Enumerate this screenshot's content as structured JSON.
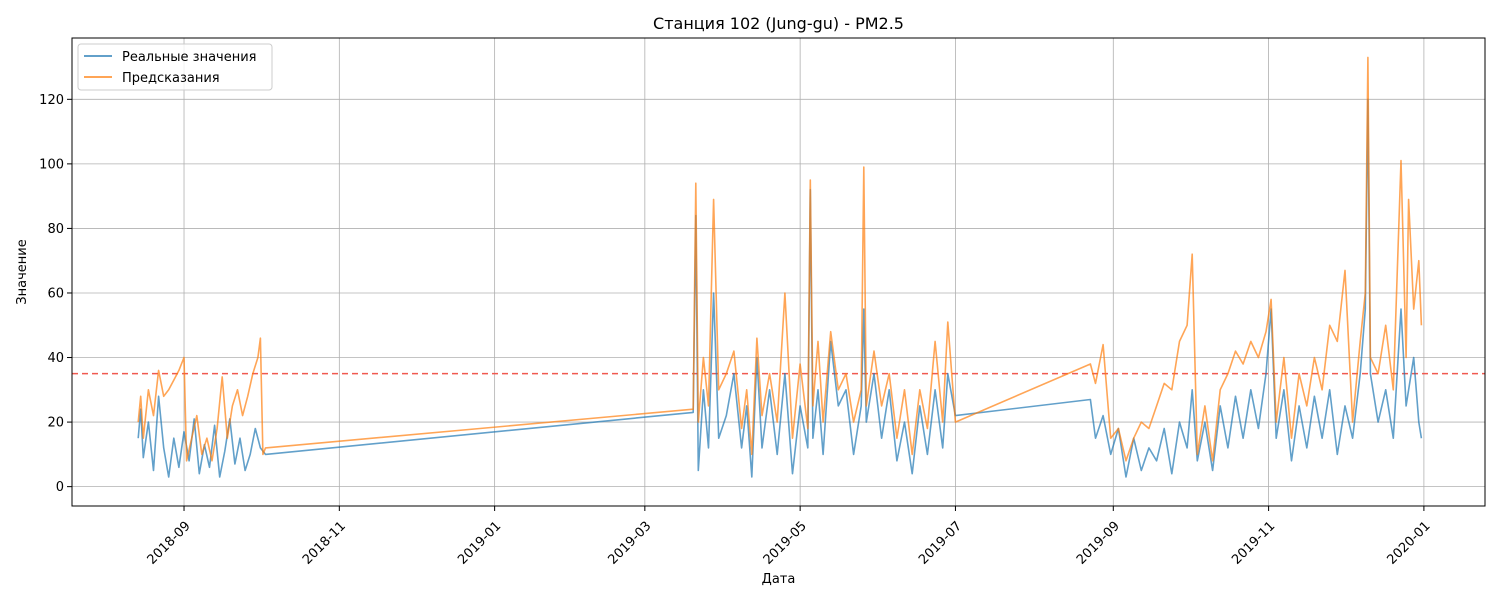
{
  "chart_data": {
    "type": "line",
    "title": "Станция 102 (Jung-gu) - PM2.5",
    "xlabel": "Дата",
    "ylabel": "Значение",
    "x_range": [
      "2018-07-19",
      "2020-01-25"
    ],
    "ylim": [
      -6,
      139
    ],
    "x_ticks": [
      "2018-09",
      "2018-11",
      "2019-01",
      "2019-03",
      "2019-05",
      "2019-07",
      "2019-09",
      "2019-11",
      "2020-01"
    ],
    "y_ticks": [
      0,
      20,
      40,
      60,
      80,
      100,
      120
    ],
    "grid": true,
    "legend_position": "top-left",
    "threshold": {
      "value": 35,
      "color": "#f05a50",
      "style": "dashed"
    },
    "series": [
      {
        "name": "Реальные значения",
        "color": "#1f77b4",
        "points": [
          [
            "2018-08-14",
            15
          ],
          [
            "2018-08-15",
            24
          ],
          [
            "2018-08-16",
            9
          ],
          [
            "2018-08-18",
            20
          ],
          [
            "2018-08-20",
            5
          ],
          [
            "2018-08-22",
            28
          ],
          [
            "2018-08-24",
            12
          ],
          [
            "2018-08-26",
            3
          ],
          [
            "2018-08-28",
            15
          ],
          [
            "2018-08-30",
            6
          ],
          [
            "2018-09-01",
            17
          ],
          [
            "2018-09-03",
            8
          ],
          [
            "2018-09-05",
            21
          ],
          [
            "2018-09-07",
            4
          ],
          [
            "2018-09-09",
            13
          ],
          [
            "2018-09-11",
            6
          ],
          [
            "2018-09-13",
            19
          ],
          [
            "2018-09-15",
            3
          ],
          [
            "2018-09-17",
            11
          ],
          [
            "2018-09-19",
            21
          ],
          [
            "2018-09-21",
            7
          ],
          [
            "2018-09-23",
            15
          ],
          [
            "2018-09-25",
            5
          ],
          [
            "2018-09-27",
            10
          ],
          [
            "2018-09-29",
            18
          ],
          [
            "2018-10-01",
            12
          ],
          [
            "2018-10-03",
            10
          ],
          [
            "2019-03-20",
            23
          ],
          [
            "2019-03-21",
            84
          ],
          [
            "2019-03-22",
            5
          ],
          [
            "2019-03-24",
            30
          ],
          [
            "2019-03-26",
            12
          ],
          [
            "2019-03-28",
            60
          ],
          [
            "2019-03-30",
            15
          ],
          [
            "2019-04-02",
            22
          ],
          [
            "2019-04-05",
            35
          ],
          [
            "2019-04-08",
            12
          ],
          [
            "2019-04-10",
            25
          ],
          [
            "2019-04-12",
            3
          ],
          [
            "2019-04-14",
            40
          ],
          [
            "2019-04-16",
            12
          ],
          [
            "2019-04-19",
            30
          ],
          [
            "2019-04-22",
            10
          ],
          [
            "2019-04-25",
            35
          ],
          [
            "2019-04-28",
            4
          ],
          [
            "2019-05-01",
            25
          ],
          [
            "2019-05-04",
            12
          ],
          [
            "2019-05-05",
            92
          ],
          [
            "2019-05-06",
            15
          ],
          [
            "2019-05-08",
            30
          ],
          [
            "2019-05-10",
            10
          ],
          [
            "2019-05-13",
            45
          ],
          [
            "2019-05-16",
            25
          ],
          [
            "2019-05-19",
            30
          ],
          [
            "2019-05-22",
            10
          ],
          [
            "2019-05-25",
            25
          ],
          [
            "2019-05-26",
            55
          ],
          [
            "2019-05-27",
            20
          ],
          [
            "2019-05-30",
            35
          ],
          [
            "2019-06-02",
            15
          ],
          [
            "2019-06-05",
            30
          ],
          [
            "2019-06-08",
            8
          ],
          [
            "2019-06-11",
            20
          ],
          [
            "2019-06-14",
            4
          ],
          [
            "2019-06-17",
            25
          ],
          [
            "2019-06-20",
            10
          ],
          [
            "2019-06-23",
            30
          ],
          [
            "2019-06-26",
            12
          ],
          [
            "2019-06-28",
            35
          ],
          [
            "2019-07-01",
            22
          ],
          [
            "2019-08-23",
            27
          ],
          [
            "2019-08-25",
            15
          ],
          [
            "2019-08-28",
            22
          ],
          [
            "2019-08-31",
            10
          ],
          [
            "2019-09-03",
            18
          ],
          [
            "2019-09-06",
            3
          ],
          [
            "2019-09-09",
            15
          ],
          [
            "2019-09-12",
            5
          ],
          [
            "2019-09-15",
            12
          ],
          [
            "2019-09-18",
            8
          ],
          [
            "2019-09-21",
            18
          ],
          [
            "2019-09-24",
            4
          ],
          [
            "2019-09-27",
            20
          ],
          [
            "2019-09-30",
            12
          ],
          [
            "2019-10-02",
            30
          ],
          [
            "2019-10-04",
            8
          ],
          [
            "2019-10-07",
            20
          ],
          [
            "2019-10-10",
            5
          ],
          [
            "2019-10-13",
            25
          ],
          [
            "2019-10-16",
            12
          ],
          [
            "2019-10-19",
            28
          ],
          [
            "2019-10-22",
            15
          ],
          [
            "2019-10-25",
            30
          ],
          [
            "2019-10-28",
            18
          ],
          [
            "2019-10-31",
            35
          ],
          [
            "2019-11-02",
            55
          ],
          [
            "2019-11-04",
            15
          ],
          [
            "2019-11-07",
            30
          ],
          [
            "2019-11-10",
            8
          ],
          [
            "2019-11-13",
            25
          ],
          [
            "2019-11-16",
            12
          ],
          [
            "2019-11-19",
            28
          ],
          [
            "2019-11-22",
            15
          ],
          [
            "2019-11-25",
            30
          ],
          [
            "2019-11-28",
            10
          ],
          [
            "2019-12-01",
            25
          ],
          [
            "2019-12-04",
            15
          ],
          [
            "2019-12-07",
            35
          ],
          [
            "2019-12-09",
            55
          ],
          [
            "2019-12-10",
            120
          ],
          [
            "2019-12-11",
            35
          ],
          [
            "2019-12-14",
            20
          ],
          [
            "2019-12-17",
            30
          ],
          [
            "2019-12-20",
            15
          ],
          [
            "2019-12-23",
            55
          ],
          [
            "2019-12-25",
            25
          ],
          [
            "2019-12-28",
            40
          ],
          [
            "2019-12-30",
            20
          ],
          [
            "2019-12-31",
            15
          ]
        ]
      },
      {
        "name": "Предсказания",
        "color": "#ff7f0e",
        "points": [
          [
            "2018-08-14",
            20
          ],
          [
            "2018-08-15",
            28
          ],
          [
            "2018-08-16",
            15
          ],
          [
            "2018-08-18",
            30
          ],
          [
            "2018-08-20",
            22
          ],
          [
            "2018-08-22",
            36
          ],
          [
            "2018-08-24",
            28
          ],
          [
            "2018-08-26",
            30
          ],
          [
            "2018-08-28",
            33
          ],
          [
            "2018-08-30",
            36
          ],
          [
            "2018-09-01",
            40
          ],
          [
            "2018-09-02",
            8
          ],
          [
            "2018-09-04",
            15
          ],
          [
            "2018-09-06",
            22
          ],
          [
            "2018-09-08",
            10
          ],
          [
            "2018-09-10",
            15
          ],
          [
            "2018-09-12",
            8
          ],
          [
            "2018-09-14",
            18
          ],
          [
            "2018-09-16",
            34
          ],
          [
            "2018-09-18",
            15
          ],
          [
            "2018-09-20",
            25
          ],
          [
            "2018-09-22",
            30
          ],
          [
            "2018-09-24",
            22
          ],
          [
            "2018-09-26",
            28
          ],
          [
            "2018-09-28",
            35
          ],
          [
            "2018-09-30",
            40
          ],
          [
            "2018-10-01",
            46
          ],
          [
            "2018-10-02",
            10
          ],
          [
            "2018-10-03",
            12
          ],
          [
            "2019-03-20",
            24
          ],
          [
            "2019-03-21",
            94
          ],
          [
            "2019-03-22",
            20
          ],
          [
            "2019-03-24",
            40
          ],
          [
            "2019-03-26",
            25
          ],
          [
            "2019-03-28",
            89
          ],
          [
            "2019-03-30",
            30
          ],
          [
            "2019-04-02",
            35
          ],
          [
            "2019-04-05",
            42
          ],
          [
            "2019-04-08",
            18
          ],
          [
            "2019-04-10",
            30
          ],
          [
            "2019-04-12",
            10
          ],
          [
            "2019-04-14",
            46
          ],
          [
            "2019-04-16",
            22
          ],
          [
            "2019-04-19",
            35
          ],
          [
            "2019-04-22",
            20
          ],
          [
            "2019-04-25",
            60
          ],
          [
            "2019-04-28",
            15
          ],
          [
            "2019-05-01",
            38
          ],
          [
            "2019-05-04",
            18
          ],
          [
            "2019-05-05",
            95
          ],
          [
            "2019-05-06",
            25
          ],
          [
            "2019-05-08",
            45
          ],
          [
            "2019-05-10",
            20
          ],
          [
            "2019-05-13",
            48
          ],
          [
            "2019-05-16",
            30
          ],
          [
            "2019-05-19",
            35
          ],
          [
            "2019-05-22",
            20
          ],
          [
            "2019-05-25",
            30
          ],
          [
            "2019-05-26",
            99
          ],
          [
            "2019-05-27",
            25
          ],
          [
            "2019-05-30",
            42
          ],
          [
            "2019-06-02",
            25
          ],
          [
            "2019-06-05",
            35
          ],
          [
            "2019-06-08",
            15
          ],
          [
            "2019-06-11",
            30
          ],
          [
            "2019-06-14",
            10
          ],
          [
            "2019-06-17",
            30
          ],
          [
            "2019-06-20",
            18
          ],
          [
            "2019-06-23",
            45
          ],
          [
            "2019-06-26",
            20
          ],
          [
            "2019-06-28",
            51
          ],
          [
            "2019-07-01",
            20
          ],
          [
            "2019-08-23",
            38
          ],
          [
            "2019-08-25",
            32
          ],
          [
            "2019-08-28",
            44
          ],
          [
            "2019-08-31",
            15
          ],
          [
            "2019-09-03",
            18
          ],
          [
            "2019-09-06",
            8
          ],
          [
            "2019-09-09",
            15
          ],
          [
            "2019-09-12",
            20
          ],
          [
            "2019-09-15",
            18
          ],
          [
            "2019-09-18",
            25
          ],
          [
            "2019-09-21",
            32
          ],
          [
            "2019-09-24",
            30
          ],
          [
            "2019-09-27",
            45
          ],
          [
            "2019-09-30",
            50
          ],
          [
            "2019-10-02",
            72
          ],
          [
            "2019-10-04",
            10
          ],
          [
            "2019-10-07",
            25
          ],
          [
            "2019-10-10",
            8
          ],
          [
            "2019-10-13",
            30
          ],
          [
            "2019-10-16",
            35
          ],
          [
            "2019-10-19",
            42
          ],
          [
            "2019-10-22",
            38
          ],
          [
            "2019-10-25",
            45
          ],
          [
            "2019-10-28",
            40
          ],
          [
            "2019-10-31",
            48
          ],
          [
            "2019-11-02",
            58
          ],
          [
            "2019-11-04",
            20
          ],
          [
            "2019-11-07",
            40
          ],
          [
            "2019-11-10",
            15
          ],
          [
            "2019-11-13",
            35
          ],
          [
            "2019-11-16",
            25
          ],
          [
            "2019-11-19",
            40
          ],
          [
            "2019-11-22",
            30
          ],
          [
            "2019-11-25",
            50
          ],
          [
            "2019-11-28",
            45
          ],
          [
            "2019-12-01",
            67
          ],
          [
            "2019-12-04",
            20
          ],
          [
            "2019-12-07",
            45
          ],
          [
            "2019-12-09",
            60
          ],
          [
            "2019-12-10",
            133
          ],
          [
            "2019-12-11",
            40
          ],
          [
            "2019-12-14",
            35
          ],
          [
            "2019-12-17",
            50
          ],
          [
            "2019-12-20",
            30
          ],
          [
            "2019-12-23",
            101
          ],
          [
            "2019-12-25",
            40
          ],
          [
            "2019-12-26",
            89
          ],
          [
            "2019-12-28",
            55
          ],
          [
            "2019-12-30",
            70
          ],
          [
            "2019-12-31",
            50
          ]
        ]
      }
    ]
  }
}
